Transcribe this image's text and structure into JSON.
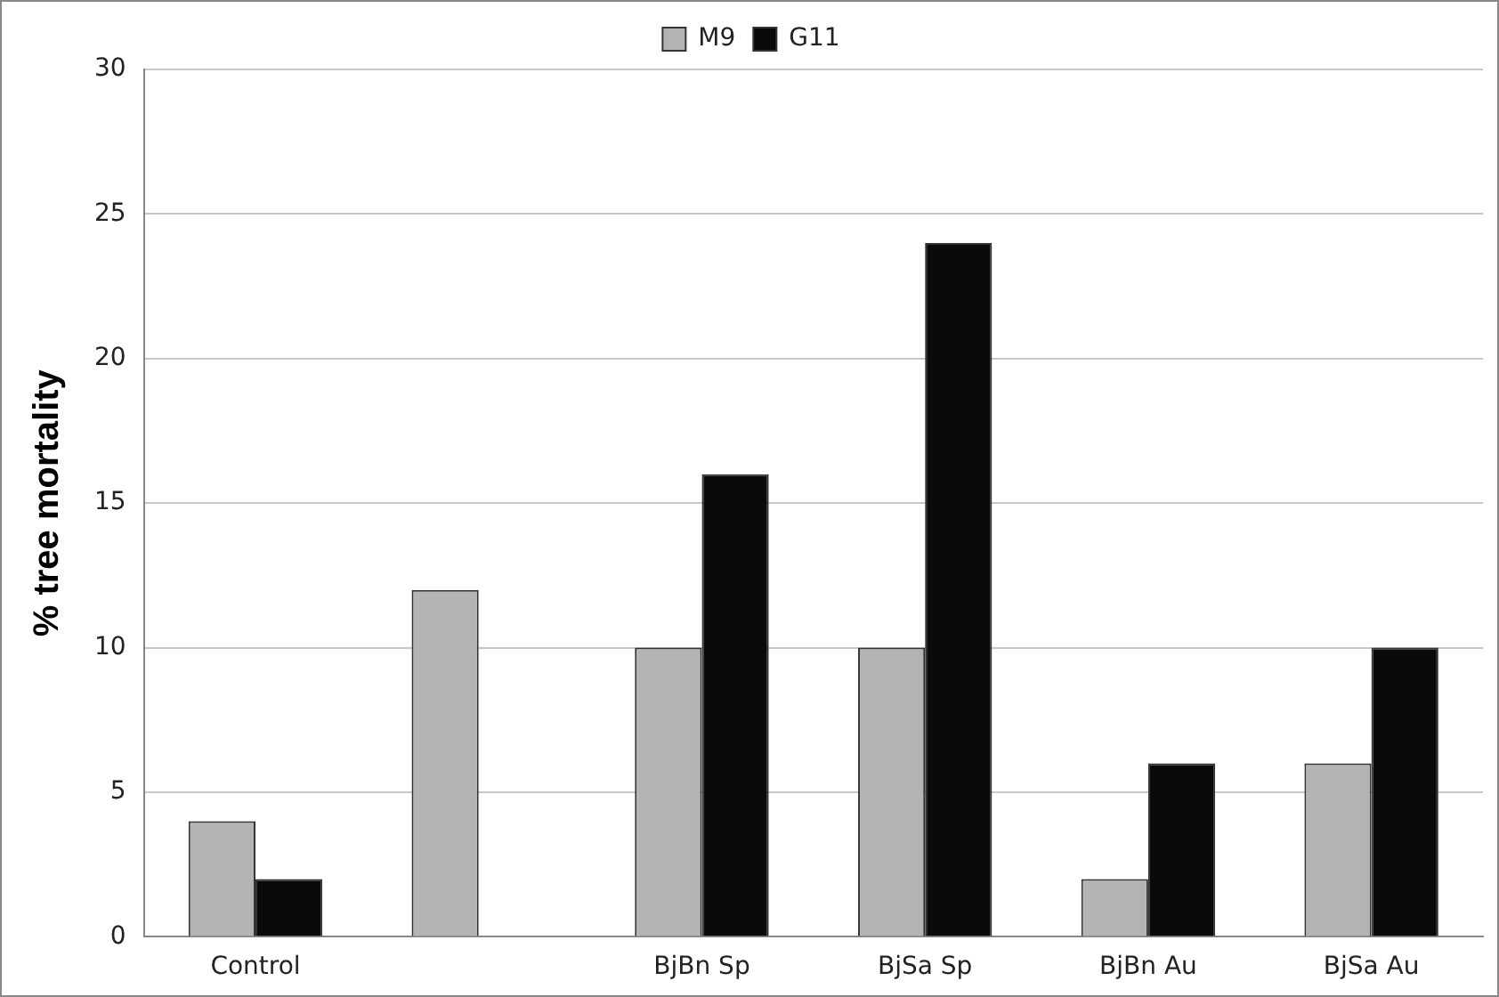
{
  "chart_data": {
    "type": "bar",
    "ylabel": "% tree mortality",
    "categories": [
      "Control",
      null,
      "BjBn Sp",
      "BjSa Sp",
      "BjBn Au",
      "BjSa Au"
    ],
    "series": [
      {
        "name": "M9",
        "color": "#b4b4b4",
        "values": [
          4,
          12,
          10,
          10,
          2,
          6
        ]
      },
      {
        "name": "G11",
        "color": "#0a0a0a",
        "values": [
          2,
          0,
          16,
          24,
          6,
          10
        ]
      }
    ],
    "ylim": [
      0,
      30
    ],
    "yticks": [
      0,
      5,
      10,
      15,
      20,
      25,
      30
    ],
    "grid": "y",
    "legend": "top"
  }
}
